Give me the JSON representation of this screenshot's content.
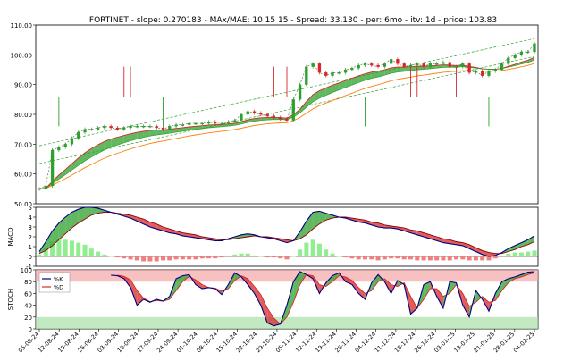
{
  "title": "FORTINET - slope: 0.270183 - MAx/MAE: 10 15 15 - Spread: 33.130 - per: 6mo - itv: 1d - price: 103.83",
  "colors": {
    "up_candle": "#2ca02c",
    "down_candle": "#d62728",
    "ma_fast": "#d62728",
    "ma_slow": "#ff7f0e",
    "ma_mid": "#2ca02c",
    "trend": "#2ca02c",
    "macd_line": "#000080",
    "macd_signal": "#8b0000",
    "macd_fill_up": "#2ca02c",
    "macd_fill_down": "#d62728",
    "hist_pos": "#90ee90",
    "hist_neg": "#f08080",
    "stoch_k": "#000080",
    "stoch_d": "#d62728",
    "band_high": "#f4a6a6",
    "band_low": "#a8e0a8"
  },
  "chart_data": [
    {
      "type": "line",
      "panel": "price",
      "title": "FORTINET - slope: 0.270183 - MAx/MAE: 10 15 15 - Spread: 33.130 - per: 6mo - itv: 1d - price: 103.83",
      "ylim": [
        50,
        110
      ],
      "yticks": [
        "50.00",
        "60.00",
        "70.00",
        "80.00",
        "90.00",
        "100.00",
        "110.00"
      ],
      "x": [
        "05-08-24",
        "07-08-24",
        "09-08-24",
        "12-08-24",
        "14-08-24",
        "16-08-24",
        "19-08-24",
        "21-08-24",
        "23-08-24",
        "26-08-24",
        "28-08-24",
        "30-08-24",
        "03-09-24",
        "05-09-24",
        "07-09-24",
        "10-09-24",
        "12-09-24",
        "14-09-24",
        "17-09-24",
        "19-09-24",
        "21-09-24",
        "24-09-24",
        "26-09-24",
        "28-09-24",
        "01-10-24",
        "03-10-24",
        "05-10-24",
        "08-10-24",
        "10-10-24",
        "12-10-24",
        "15-10-24",
        "17-10-24",
        "19-10-24",
        "22-10-24",
        "24-10-24",
        "26-10-24",
        "29-10-24",
        "31-10-24",
        "02-11-24",
        "05-11-24",
        "07-11-24",
        "09-11-24",
        "12-11-24",
        "14-11-24",
        "16-11-24",
        "19-11-24",
        "21-11-24",
        "23-11-24",
        "26-11-24",
        "28-11-24",
        "30-11-24",
        "04-12-24",
        "06-12-24",
        "08-12-24",
        "11-12-24",
        "13-12-24",
        "15-12-24",
        "18-12-24",
        "20-12-24",
        "22-12-24",
        "26-12-24",
        "28-12-24",
        "30-12-24",
        "03-01-25",
        "05-01-25",
        "07-01-25",
        "13-01-25",
        "15-01-25",
        "17-01-25",
        "21-01-25",
        "23-01-25",
        "25-01-25",
        "28-01-25",
        "30-01-25",
        "01-02-25",
        "04-02-25",
        "06-02-25"
      ],
      "series": [
        {
          "values": [
            55,
            56,
            68,
            69,
            70,
            72,
            74,
            75,
            75,
            75.5,
            76,
            75.5,
            75,
            75.5,
            76,
            76,
            76,
            76,
            75.5,
            75,
            76,
            76.5,
            76.5,
            77,
            77,
            77,
            77.5,
            77,
            77,
            77.5,
            78,
            80,
            81,
            80.5,
            80,
            79.5,
            79,
            78.5,
            78,
            85,
            90,
            96,
            97,
            94,
            93,
            94,
            94,
            95,
            95.5,
            96.5,
            97,
            96.5,
            96,
            97,
            98.5,
            97,
            96,
            96.5,
            97,
            96,
            97,
            97,
            97.5,
            96,
            96,
            97,
            94,
            94.5,
            93,
            94.5,
            95,
            97,
            99,
            100,
            101,
            101,
            103.8
          ]
        }
      ]
    },
    {
      "type": "line",
      "panel": "macd",
      "ylabel": "MACD",
      "ylim": [
        -1,
        5
      ],
      "yticks": [
        "-1",
        "0",
        "1",
        "2",
        "3",
        "4",
        "5"
      ],
      "series": [
        {
          "values": [
            0.5,
            1.5,
            2.6,
            3.4,
            4.0,
            4.5,
            4.8,
            5.0,
            5.0,
            4.9,
            4.7,
            4.5,
            4.3,
            4.1,
            3.9,
            3.6,
            3.3,
            3.0,
            2.8,
            2.6,
            2.4,
            2.3,
            2.1,
            2.0,
            1.9,
            1.8,
            1.7,
            1.6,
            1.6,
            1.8,
            2.0,
            2.2,
            2.3,
            2.2,
            2.0,
            1.9,
            1.8,
            1.6,
            1.4,
            1.6,
            2.5,
            3.6,
            4.5,
            4.6,
            4.4,
            4.2,
            4.0,
            3.9,
            3.7,
            3.5,
            3.4,
            3.2,
            3.0,
            2.9,
            2.9,
            2.8,
            2.6,
            2.4,
            2.2,
            2.0,
            1.8,
            1.6,
            1.4,
            1.3,
            1.2,
            1.1,
            0.8,
            0.5,
            0.2,
            0.0,
            0.1,
            0.4,
            0.8,
            1.1,
            1.4,
            1.7,
            2.1
          ]
        },
        {
          "values": [
            0.3,
            0.6,
            1.1,
            1.7,
            2.3,
            2.9,
            3.4,
            3.8,
            4.2,
            4.4,
            4.5,
            4.5,
            4.4,
            4.3,
            4.2,
            4.0,
            3.8,
            3.5,
            3.3,
            3.0,
            2.8,
            2.6,
            2.4,
            2.3,
            2.2,
            2.0,
            1.9,
            1.8,
            1.7,
            1.7,
            1.8,
            1.9,
            2.0,
            2.1,
            2.0,
            2.0,
            1.9,
            1.8,
            1.7,
            1.6,
            1.8,
            2.2,
            2.8,
            3.3,
            3.7,
            3.9,
            4.0,
            4.0,
            3.9,
            3.8,
            3.7,
            3.5,
            3.4,
            3.2,
            3.1,
            3.0,
            2.9,
            2.7,
            2.6,
            2.4,
            2.2,
            2.0,
            1.8,
            1.7,
            1.5,
            1.4,
            1.2,
            0.9,
            0.6,
            0.4,
            0.3,
            0.3,
            0.5,
            0.7,
            1.0,
            1.2,
            1.5
          ]
        }
      ],
      "histogram": [
        0.2,
        0.9,
        1.5,
        1.7,
        1.7,
        1.6,
        1.4,
        1.2,
        0.8,
        0.5,
        0.2,
        0.0,
        -0.1,
        -0.2,
        -0.3,
        -0.4,
        -0.5,
        -0.5,
        -0.5,
        -0.4,
        -0.4,
        -0.3,
        -0.3,
        -0.3,
        -0.3,
        -0.2,
        -0.2,
        -0.2,
        -0.1,
        0.1,
        0.2,
        0.3,
        0.3,
        0.1,
        0.0,
        -0.1,
        -0.1,
        -0.2,
        -0.3,
        0.0,
        0.7,
        1.4,
        1.7,
        1.3,
        0.7,
        0.3,
        0.0,
        -0.1,
        -0.2,
        -0.3,
        -0.3,
        -0.3,
        -0.4,
        -0.3,
        -0.2,
        -0.2,
        -0.3,
        -0.3,
        -0.4,
        -0.4,
        -0.4,
        -0.4,
        -0.4,
        -0.4,
        -0.3,
        -0.3,
        -0.4,
        -0.4,
        -0.4,
        -0.4,
        -0.2,
        0.1,
        0.3,
        0.4,
        0.4,
        0.5,
        0.6
      ]
    },
    {
      "type": "line",
      "panel": "stoch",
      "ylabel": "STOCH",
      "ylim": [
        0,
        100
      ],
      "yticks": [
        "0",
        "20",
        "40",
        "60",
        "80",
        "100"
      ],
      "legend": [
        "%K",
        "%D"
      ],
      "series": [
        {
          "name": "%K",
          "values": [
            null,
            null,
            null,
            null,
            null,
            null,
            null,
            null,
            null,
            null,
            null,
            91,
            90,
            85,
            70,
            40,
            50,
            45,
            50,
            47,
            55,
            85,
            90,
            92,
            75,
            68,
            70,
            68,
            58,
            75,
            95,
            88,
            75,
            60,
            40,
            10,
            5,
            8,
            40,
            80,
            97,
            92,
            85,
            60,
            78,
            90,
            95,
            80,
            75,
            60,
            50,
            78,
            92,
            80,
            60,
            82,
            75,
            25,
            35,
            75,
            80,
            55,
            35,
            80,
            78,
            40,
            20,
            65,
            50,
            30,
            60,
            80,
            85,
            88,
            92,
            96,
            97
          ]
        },
        {
          "name": "%D",
          "values": [
            null,
            null,
            null,
            null,
            null,
            null,
            null,
            null,
            null,
            null,
            null,
            null,
            91,
            89,
            83,
            65,
            52,
            46,
            48,
            47,
            50,
            65,
            80,
            89,
            83,
            75,
            70,
            69,
            64,
            68,
            82,
            90,
            85,
            72,
            58,
            35,
            18,
            8,
            20,
            45,
            75,
            92,
            90,
            75,
            72,
            80,
            90,
            88,
            82,
            70,
            60,
            65,
            80,
            85,
            75,
            72,
            78,
            55,
            35,
            50,
            68,
            68,
            55,
            60,
            75,
            60,
            38,
            45,
            55,
            45,
            48,
            65,
            78,
            85,
            88,
            92,
            95
          ]
        }
      ]
    }
  ],
  "xticks": [
    "05-08-24",
    "12-08-24",
    "19-08-24",
    "26-08-24",
    "03-09-24",
    "10-09-24",
    "17-09-24",
    "24-09-24",
    "01-10-24",
    "08-10-24",
    "15-10-24",
    "22-10-24",
    "29-10-24",
    "05-11-24",
    "12-11-24",
    "19-11-24",
    "26-11-24",
    "04-12-24",
    "11-12-24",
    "18-12-24",
    "26-12-24",
    "03-01-25",
    "13-01-25",
    "21-01-25",
    "28-01-25",
    "04-02-25"
  ]
}
